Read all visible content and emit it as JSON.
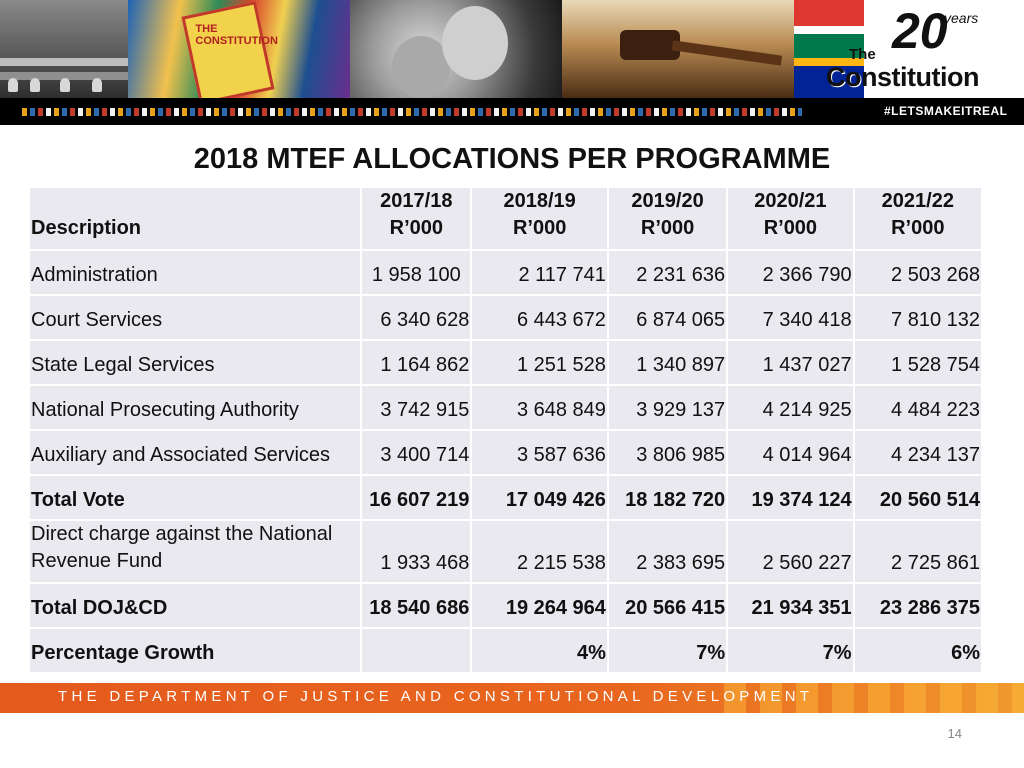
{
  "banner": {
    "art_book_text": "THE CONSTITUTION",
    "logo_the": "The",
    "logo_constitution": "Constitution",
    "logo_number": "20",
    "logo_years": "years",
    "hashtag": "#LETSMAKEITREAL"
  },
  "title": "2018 MTEF ALLOCATIONS PER PROGRAMME",
  "table": {
    "header": {
      "description": "Description",
      "years": [
        {
          "year": "2017/18",
          "unit": "R’000"
        },
        {
          "year": "2018/19",
          "unit": "R’000"
        },
        {
          "year": "2019/20",
          "unit": "R’000"
        },
        {
          "year": "2020/21",
          "unit": "R’000"
        },
        {
          "year": "2021/22",
          "unit": "R’000"
        }
      ]
    },
    "rows": [
      {
        "label": "Administration",
        "values": [
          "1 958 100",
          "2 117 741",
          "2 231 636",
          "2 366 790",
          "2 503 268"
        ]
      },
      {
        "label": "Court Services",
        "values": [
          "6 340 628",
          "6 443 672",
          "6 874 065",
          "7 340 418",
          "7 810 132"
        ]
      },
      {
        "label": "State Legal Services",
        "values": [
          "1 164 862",
          "1 251 528",
          "1 340 897",
          "1 437 027",
          "1 528 754"
        ]
      },
      {
        "label": "National Prosecuting Authority",
        "values": [
          "3 742 915",
          "3 648 849",
          "3 929 137",
          "4 214 925",
          "4 484 223"
        ]
      },
      {
        "label": "Auxiliary and Associated Services",
        "values": [
          "3 400 714",
          "3 587 636",
          "3 806 985",
          "4 014 964",
          "4 234 137"
        ]
      },
      {
        "label": "Total Vote",
        "values": [
          "16 607 219",
          "17 049 426",
          "18 182 720",
          "19 374 124",
          "20 560 514"
        ]
      },
      {
        "label_line1": "Direct charge against the National",
        "label_line2": "Revenue Fund",
        "values": [
          "1 933 468",
          "2 215 538",
          "2 383 695",
          "2 560 227",
          "2 725 861"
        ]
      },
      {
        "label": "Total DOJ&CD",
        "values": [
          "18 540 686",
          "19 264 964",
          "20 566 415",
          "21 934 351",
          "23 286 375"
        ]
      },
      {
        "label": "Percentage Growth",
        "values": [
          "",
          "4%",
          "7%",
          "7%",
          "6%"
        ]
      }
    ]
  },
  "footer": {
    "department": "THE DEPARTMENT OF JUSTICE AND CONSTITUTIONAL DEVELOPMENT",
    "page_number": "14"
  },
  "colors": {
    "table_cell_bg": "#e9e9ef",
    "footer_orange": "#e8661f"
  }
}
